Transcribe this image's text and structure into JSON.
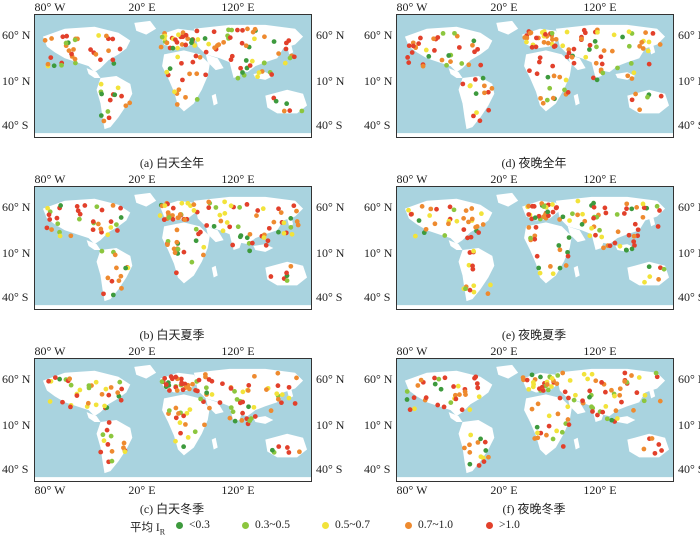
{
  "axis_labels": {
    "lon": [
      "80° W",
      "20° E",
      "120° E"
    ],
    "lat": [
      "60° N",
      "10° N",
      "40° S"
    ]
  },
  "panels": [
    {
      "id": "a",
      "caption": "(a) 白天全年",
      "show_bottom_ticks": false
    },
    {
      "id": "d",
      "caption": "(d) 夜晚全年",
      "show_bottom_ticks": false
    },
    {
      "id": "b",
      "caption": "(b) 白天夏季",
      "show_bottom_ticks": false
    },
    {
      "id": "e",
      "caption": "(e) 夜晚夏季",
      "show_bottom_ticks": false
    },
    {
      "id": "c",
      "caption": "(c) 白天冬季",
      "show_bottom_ticks": true
    },
    {
      "id": "f",
      "caption": "(f) 夜晚冬季",
      "show_bottom_ticks": true
    }
  ],
  "legend": {
    "title": "平均 I",
    "title_sub": "R",
    "items": [
      {
        "label": "<0.3",
        "color": "#3d9a3d"
      },
      {
        "label": "0.3~0.5",
        "color": "#8cc63e"
      },
      {
        "label": "0.5~0.7",
        "color": "#f2e33a"
      },
      {
        "label": "0.7~1.0",
        "color": "#ee8a2f"
      },
      {
        "label": ">1.0",
        "color": "#e2402b"
      }
    ]
  },
  "colors": {
    "ocean": "#a9d3df",
    "land": "#ffffff"
  }
}
